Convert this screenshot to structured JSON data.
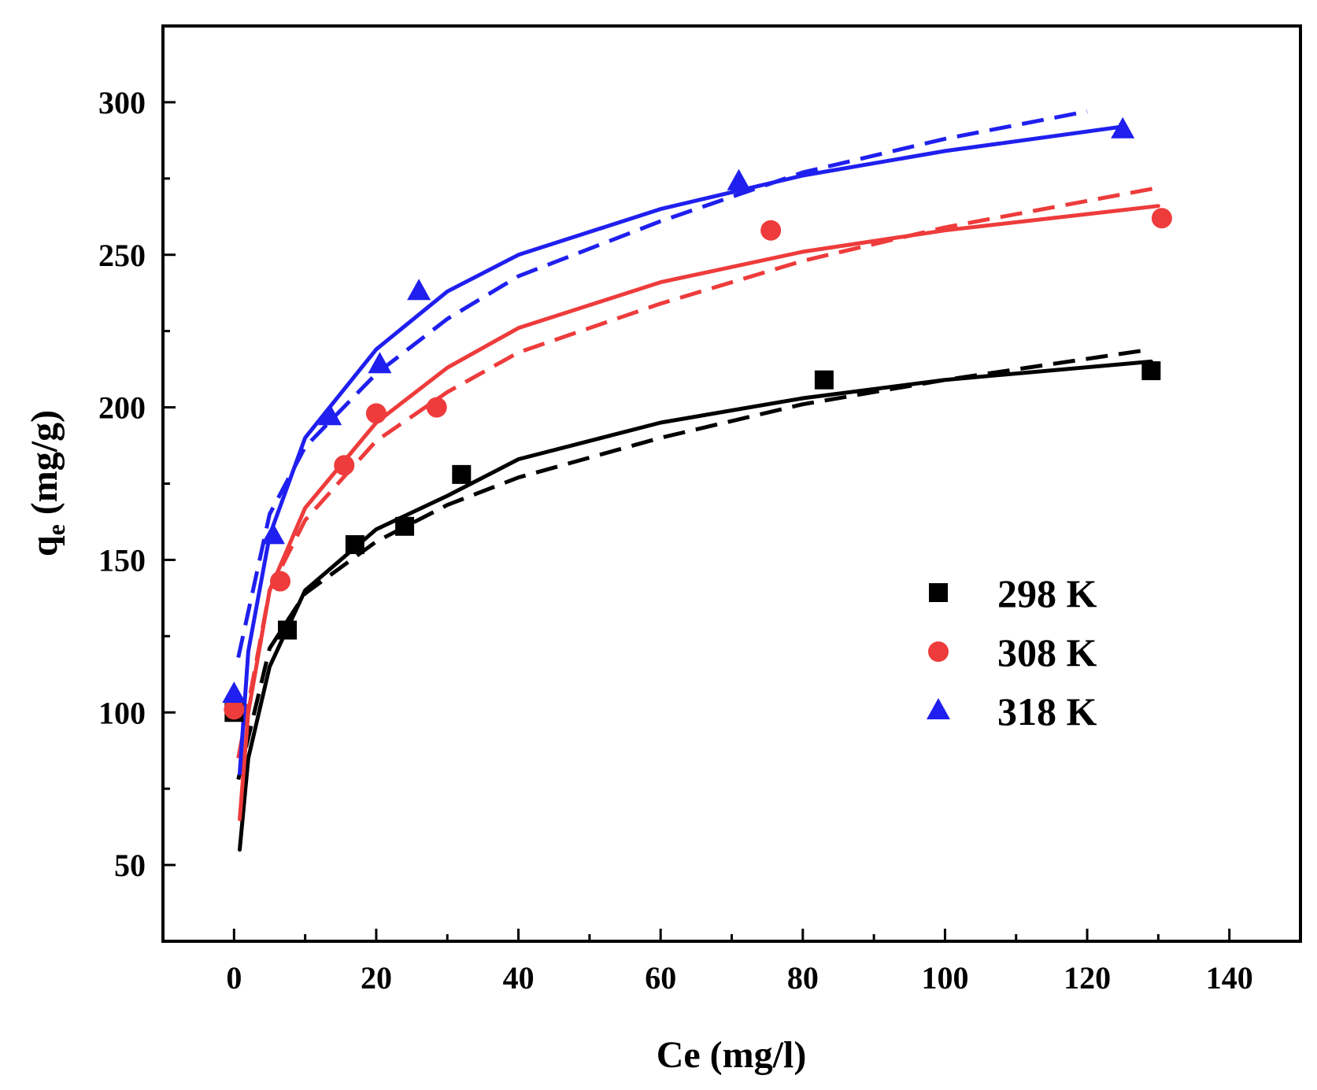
{
  "chart_data": {
    "type": "scatter",
    "title": "",
    "xlabel": "Ce (mg/l)",
    "ylabel_main": "q",
    "ylabel_sub": "e",
    "ylabel_unit": " (mg/g)",
    "xlim": [
      -10,
      150
    ],
    "ylim": [
      25,
      325
    ],
    "xticks": [
      0,
      20,
      40,
      60,
      80,
      100,
      120,
      140
    ],
    "xtick_labels": [
      "0",
      "20",
      "40",
      "60",
      "80",
      "100",
      "120",
      "140"
    ],
    "yticks": [
      50,
      100,
      150,
      200,
      250,
      300
    ],
    "ytick_labels": [
      "50",
      "100",
      "150",
      "200",
      "250",
      "300"
    ],
    "legend_position": "right-middle",
    "series": [
      {
        "name": "298 K",
        "color": "#000000",
        "marker": "square",
        "points": [
          {
            "x": 0,
            "y": 100
          },
          {
            "x": 7.5,
            "y": 127
          },
          {
            "x": 17,
            "y": 155
          },
          {
            "x": 24,
            "y": 161
          },
          {
            "x": 32,
            "y": 178
          },
          {
            "x": 83,
            "y": 209
          },
          {
            "x": 129,
            "y": 212
          }
        ],
        "fit_solid": {
          "xmin": 0.8,
          "xmax": 129,
          "curve": [
            [
              0.8,
              55
            ],
            [
              2,
              85
            ],
            [
              5,
              115
            ],
            [
              10,
              140
            ],
            [
              20,
              160
            ],
            [
              30,
              171
            ],
            [
              40,
              183
            ],
            [
              60,
              195
            ],
            [
              80,
              203
            ],
            [
              100,
              209
            ],
            [
              129,
              215
            ]
          ]
        },
        "fit_dashed": {
          "xmin": 0.6,
          "xmax": 129,
          "curve": [
            [
              0.6,
              78
            ],
            [
              5,
              121
            ],
            [
              10,
              139
            ],
            [
              20,
              156
            ],
            [
              30,
              168
            ],
            [
              40,
              177
            ],
            [
              60,
              190
            ],
            [
              80,
              201
            ],
            [
              100,
              209
            ],
            [
              129,
              219
            ]
          ]
        }
      },
      {
        "name": "308 K",
        "color": "#ee3b3b",
        "marker": "circle",
        "points": [
          {
            "x": 0,
            "y": 101
          },
          {
            "x": 6.5,
            "y": 143
          },
          {
            "x": 15.5,
            "y": 181
          },
          {
            "x": 20,
            "y": 198
          },
          {
            "x": 28.5,
            "y": 200
          },
          {
            "x": 75.5,
            "y": 258
          },
          {
            "x": 130.5,
            "y": 262
          }
        ],
        "fit_solid": {
          "xmin": 0.8,
          "xmax": 130,
          "curve": [
            [
              0.8,
              65
            ],
            [
              2,
              100
            ],
            [
              5,
              140
            ],
            [
              10,
              167
            ],
            [
              20,
              195
            ],
            [
              30,
              213
            ],
            [
              40,
              226
            ],
            [
              60,
              241
            ],
            [
              80,
              251
            ],
            [
              100,
              258
            ],
            [
              130,
              266
            ]
          ]
        },
        "fit_dashed": {
          "xmin": 0.6,
          "xmax": 130,
          "curve": [
            [
              0.6,
              85
            ],
            [
              5,
              140
            ],
            [
              10,
              163
            ],
            [
              20,
              189
            ],
            [
              30,
              205
            ],
            [
              40,
              218
            ],
            [
              60,
              234
            ],
            [
              80,
              248
            ],
            [
              100,
              259
            ],
            [
              130,
              272
            ]
          ]
        }
      },
      {
        "name": "318 K",
        "color": "#1f1fef",
        "marker": "triangle",
        "points": [
          {
            "x": 0,
            "y": 106
          },
          {
            "x": 5.5,
            "y": 158
          },
          {
            "x": 13.5,
            "y": 197
          },
          {
            "x": 20.5,
            "y": 214
          },
          {
            "x": 26,
            "y": 238
          },
          {
            "x": 71,
            "y": 274
          },
          {
            "x": 125,
            "y": 291
          }
        ],
        "fit_solid": {
          "xmin": 0.8,
          "xmax": 125,
          "curve": [
            [
              0.8,
              80
            ],
            [
              2,
              120
            ],
            [
              5,
              158
            ],
            [
              10,
              190
            ],
            [
              20,
              219
            ],
            [
              30,
              238
            ],
            [
              40,
              250
            ],
            [
              60,
              265
            ],
            [
              80,
              276
            ],
            [
              100,
              284
            ],
            [
              125,
              292
            ]
          ]
        },
        "fit_dashed": {
          "xmin": 0.6,
          "xmax": 120,
          "curve": [
            [
              0.6,
              118
            ],
            [
              5,
              165
            ],
            [
              10,
              187
            ],
            [
              20,
              211
            ],
            [
              30,
              229
            ],
            [
              40,
              243
            ],
            [
              60,
              261
            ],
            [
              80,
              277
            ],
            [
              100,
              288
            ],
            [
              120,
              297
            ]
          ]
        }
      }
    ]
  }
}
